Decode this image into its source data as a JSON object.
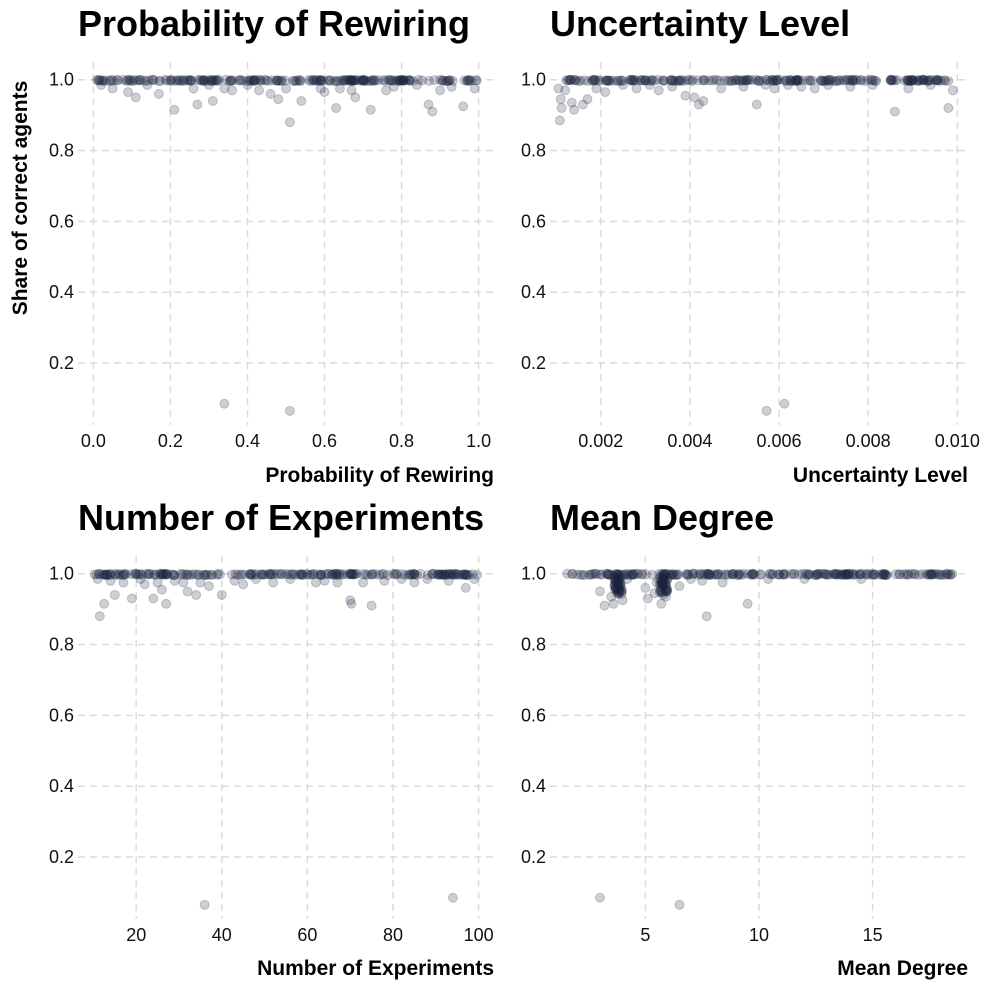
{
  "figure": {
    "ylabel": "Share of correct agents",
    "point_color": "#1c2541",
    "grid_color": "#dcdcdc"
  },
  "chart_data": [
    {
      "type": "scatter",
      "title": "Probability of Rewiring",
      "xlabel": "Probability of Rewiring",
      "ylabel": "Share of correct agents",
      "xlim": [
        -0.04,
        1.04
      ],
      "ylim": [
        0.025,
        1.05
      ],
      "xticks": [
        0.0,
        0.2,
        0.4,
        0.6,
        0.8,
        1.0
      ],
      "xtick_labels": [
        "0.0",
        "0.2",
        "0.4",
        "0.6",
        "0.8",
        "1.0"
      ],
      "yticks": [
        0.2,
        0.4,
        0.6,
        0.8,
        1.0
      ],
      "ytick_labels": [
        "0.2",
        "0.4",
        "0.6",
        "0.8",
        "1.0"
      ],
      "grid": true,
      "outliers": [
        {
          "x": 0.02,
          "y": 0.985
        },
        {
          "x": 0.05,
          "y": 0.975
        },
        {
          "x": 0.09,
          "y": 0.965
        },
        {
          "x": 0.11,
          "y": 0.95
        },
        {
          "x": 0.14,
          "y": 0.985
        },
        {
          "x": 0.17,
          "y": 0.96
        },
        {
          "x": 0.21,
          "y": 0.915
        },
        {
          "x": 0.26,
          "y": 0.975
        },
        {
          "x": 0.27,
          "y": 0.93
        },
        {
          "x": 0.3,
          "y": 0.985
        },
        {
          "x": 0.31,
          "y": 0.94
        },
        {
          "x": 0.34,
          "y": 0.975
        },
        {
          "x": 0.36,
          "y": 0.97
        },
        {
          "x": 0.4,
          "y": 0.985
        },
        {
          "x": 0.43,
          "y": 0.97
        },
        {
          "x": 0.46,
          "y": 0.96
        },
        {
          "x": 0.48,
          "y": 0.945
        },
        {
          "x": 0.5,
          "y": 0.975
        },
        {
          "x": 0.51,
          "y": 0.88
        },
        {
          "x": 0.54,
          "y": 0.94
        },
        {
          "x": 0.59,
          "y": 0.975
        },
        {
          "x": 0.6,
          "y": 0.965
        },
        {
          "x": 0.63,
          "y": 0.92
        },
        {
          "x": 0.64,
          "y": 0.975
        },
        {
          "x": 0.67,
          "y": 0.97
        },
        {
          "x": 0.68,
          "y": 0.95
        },
        {
          "x": 0.72,
          "y": 0.915
        },
        {
          "x": 0.76,
          "y": 0.97
        },
        {
          "x": 0.78,
          "y": 0.98
        },
        {
          "x": 0.84,
          "y": 0.985
        },
        {
          "x": 0.87,
          "y": 0.93
        },
        {
          "x": 0.88,
          "y": 0.91
        },
        {
          "x": 0.9,
          "y": 0.97
        },
        {
          "x": 0.93,
          "y": 0.98
        },
        {
          "x": 0.96,
          "y": 0.925
        },
        {
          "x": 0.99,
          "y": 0.975
        },
        {
          "x": 0.34,
          "y": 0.085
        },
        {
          "x": 0.51,
          "y": 0.065
        }
      ]
    },
    {
      "type": "scatter",
      "title": "Uncertainty Level",
      "xlabel": "Uncertainty Level",
      "ylabel": "",
      "xlim": [
        0.00086,
        0.01024
      ],
      "ylim": [
        0.025,
        1.05
      ],
      "xticks": [
        0.002,
        0.004,
        0.006,
        0.008,
        0.01
      ],
      "xtick_labels": [
        "0.002",
        "0.004",
        "0.006",
        "0.008",
        "0.010"
      ],
      "yticks": [
        0.2,
        0.4,
        0.6,
        0.8,
        1.0
      ],
      "ytick_labels": [
        "0.2",
        "0.4",
        "0.6",
        "0.8",
        "1.0"
      ],
      "grid": true,
      "outliers": [
        {
          "x": 0.00105,
          "y": 0.975
        },
        {
          "x": 0.0011,
          "y": 0.945
        },
        {
          "x": 0.00112,
          "y": 0.92
        },
        {
          "x": 0.00108,
          "y": 0.885
        },
        {
          "x": 0.0012,
          "y": 0.97
        },
        {
          "x": 0.00135,
          "y": 0.935
        },
        {
          "x": 0.0014,
          "y": 0.915
        },
        {
          "x": 0.0016,
          "y": 0.93
        },
        {
          "x": 0.0017,
          "y": 0.945
        },
        {
          "x": 0.0019,
          "y": 0.975
        },
        {
          "x": 0.0021,
          "y": 0.965
        },
        {
          "x": 0.0025,
          "y": 0.985
        },
        {
          "x": 0.0028,
          "y": 0.975
        },
        {
          "x": 0.0031,
          "y": 0.985
        },
        {
          "x": 0.0033,
          "y": 0.97
        },
        {
          "x": 0.0036,
          "y": 0.98
        },
        {
          "x": 0.0039,
          "y": 0.955
        },
        {
          "x": 0.0041,
          "y": 0.95
        },
        {
          "x": 0.0042,
          "y": 0.93
        },
        {
          "x": 0.0043,
          "y": 0.94
        },
        {
          "x": 0.0047,
          "y": 0.975
        },
        {
          "x": 0.0052,
          "y": 0.98
        },
        {
          "x": 0.0055,
          "y": 0.93
        },
        {
          "x": 0.0057,
          "y": 0.985
        },
        {
          "x": 0.0059,
          "y": 0.975
        },
        {
          "x": 0.0062,
          "y": 0.985
        },
        {
          "x": 0.0065,
          "y": 0.98
        },
        {
          "x": 0.0068,
          "y": 0.975
        },
        {
          "x": 0.0071,
          "y": 0.985
        },
        {
          "x": 0.0076,
          "y": 0.98
        },
        {
          "x": 0.0081,
          "y": 0.985
        },
        {
          "x": 0.0086,
          "y": 0.91
        },
        {
          "x": 0.0089,
          "y": 0.975
        },
        {
          "x": 0.0094,
          "y": 0.985
        },
        {
          "x": 0.0098,
          "y": 0.92
        },
        {
          "x": 0.0099,
          "y": 0.97
        },
        {
          "x": 0.00572,
          "y": 0.065
        },
        {
          "x": 0.00612,
          "y": 0.085
        }
      ]
    },
    {
      "type": "scatter",
      "title": "Number of Experiments",
      "xlabel": "Number of Experiments",
      "ylabel": "",
      "xlim": [
        6.4,
        103.6
      ],
      "ylim": [
        0.025,
        1.05
      ],
      "xticks": [
        20,
        40,
        60,
        80,
        100
      ],
      "xtick_labels": [
        "20",
        "40",
        "60",
        "80",
        "100"
      ],
      "yticks": [
        0.2,
        0.4,
        0.6,
        0.8,
        1.0
      ],
      "ytick_labels": [
        "0.2",
        "0.4",
        "0.6",
        "0.8",
        "1.0"
      ],
      "grid": true,
      "outliers": [
        {
          "x": 11,
          "y": 0.985
        },
        {
          "x": 11.5,
          "y": 0.88
        },
        {
          "x": 12.5,
          "y": 0.915
        },
        {
          "x": 14,
          "y": 0.98
        },
        {
          "x": 15,
          "y": 0.94
        },
        {
          "x": 17,
          "y": 0.975
        },
        {
          "x": 19,
          "y": 0.93
        },
        {
          "x": 21,
          "y": 0.985
        },
        {
          "x": 22,
          "y": 0.97
        },
        {
          "x": 24,
          "y": 0.93
        },
        {
          "x": 25,
          "y": 0.975
        },
        {
          "x": 26,
          "y": 0.955
        },
        {
          "x": 27,
          "y": 0.915
        },
        {
          "x": 29,
          "y": 0.98
        },
        {
          "x": 31,
          "y": 0.975
        },
        {
          "x": 32,
          "y": 0.95
        },
        {
          "x": 34,
          "y": 0.94
        },
        {
          "x": 35,
          "y": 0.975
        },
        {
          "x": 37,
          "y": 0.965
        },
        {
          "x": 40,
          "y": 0.94
        },
        {
          "x": 43,
          "y": 0.98
        },
        {
          "x": 45,
          "y": 0.97
        },
        {
          "x": 48,
          "y": 0.985
        },
        {
          "x": 52,
          "y": 0.975
        },
        {
          "x": 56,
          "y": 0.985
        },
        {
          "x": 62,
          "y": 0.975
        },
        {
          "x": 64,
          "y": 0.98
        },
        {
          "x": 67,
          "y": 0.975
        },
        {
          "x": 70,
          "y": 0.925
        },
        {
          "x": 70.3,
          "y": 0.915
        },
        {
          "x": 73,
          "y": 0.975
        },
        {
          "x": 75,
          "y": 0.91
        },
        {
          "x": 78,
          "y": 0.98
        },
        {
          "x": 82,
          "y": 0.985
        },
        {
          "x": 85,
          "y": 0.975
        },
        {
          "x": 88,
          "y": 0.985
        },
        {
          "x": 93,
          "y": 0.98
        },
        {
          "x": 97,
          "y": 0.96
        },
        {
          "x": 99,
          "y": 0.985
        },
        {
          "x": 36,
          "y": 0.065
        },
        {
          "x": 94,
          "y": 0.085
        }
      ]
    },
    {
      "type": "scatter",
      "title": "Mean Degree",
      "xlabel": "Mean Degree",
      "ylabel": "",
      "xlim": [
        0.8,
        19.2
      ],
      "ylim": [
        0.025,
        1.05
      ],
      "xticks": [
        5,
        10,
        15
      ],
      "xtick_labels": [
        "5",
        "10",
        "15"
      ],
      "yticks": [
        0.2,
        0.4,
        0.6,
        0.8,
        1.0
      ],
      "ytick_labels": [
        "0.2",
        "0.4",
        "0.6",
        "0.8",
        "1.0"
      ],
      "grid": true,
      "outliers": [
        {
          "x": 1.8,
          "y": 1.0
        },
        {
          "x": 2.8,
          "y": 1.0
        },
        {
          "x": 3.0,
          "y": 0.95
        },
        {
          "x": 3.2,
          "y": 0.91
        },
        {
          "x": 3.5,
          "y": 0.935
        },
        {
          "x": 3.6,
          "y": 0.915
        },
        {
          "x": 3.7,
          "y": 0.96
        },
        {
          "x": 3.8,
          "y": 0.975
        },
        {
          "x": 3.85,
          "y": 0.955
        },
        {
          "x": 3.9,
          "y": 0.97
        },
        {
          "x": 4.0,
          "y": 0.925
        },
        {
          "x": 4.2,
          "y": 0.985
        },
        {
          "x": 5.0,
          "y": 0.96
        },
        {
          "x": 5.1,
          "y": 0.93
        },
        {
          "x": 5.4,
          "y": 0.945
        },
        {
          "x": 5.5,
          "y": 0.975
        },
        {
          "x": 5.7,
          "y": 0.915
        },
        {
          "x": 5.9,
          "y": 0.935
        },
        {
          "x": 5.6,
          "y": 0.985
        },
        {
          "x": 6.5,
          "y": 0.965
        },
        {
          "x": 7.0,
          "y": 0.985
        },
        {
          "x": 7.5,
          "y": 0.98
        },
        {
          "x": 7.7,
          "y": 0.88
        },
        {
          "x": 8.4,
          "y": 0.975
        },
        {
          "x": 9.5,
          "y": 0.915
        },
        {
          "x": 10.4,
          "y": 0.985
        },
        {
          "x": 12.0,
          "y": 0.985
        },
        {
          "x": 14.5,
          "y": 0.985
        },
        {
          "x": 3.0,
          "y": 0.085
        },
        {
          "x": 6.5,
          "y": 0.065
        }
      ]
    }
  ]
}
